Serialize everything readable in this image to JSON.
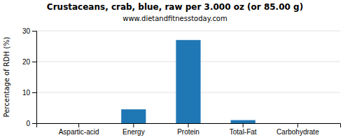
{
  "chart_data": {
    "type": "bar",
    "title": "Crustaceans, crab, blue, raw per 3.000 oz (or 85.00 g)",
    "subtitle": "www.dietandfitnesstoday.com",
    "categories": [
      "Aspartic-acid",
      "Energy",
      "Protein",
      "Total-Fat",
      "Carbohydrate"
    ],
    "values": [
      0,
      4.5,
      27,
      1.0,
      0
    ],
    "ylabel": "Percentage of RDH (%)",
    "ylim": [
      0,
      30
    ],
    "yticks": [
      0,
      10,
      20,
      30
    ],
    "grid": true
  }
}
